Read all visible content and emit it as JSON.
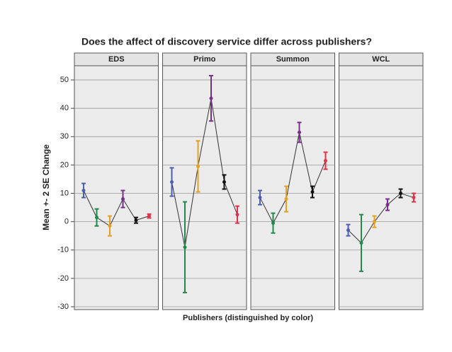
{
  "chart_data": {
    "type": "errorbar",
    "title": "Does the affect of discovery service differ across publishers?",
    "ylabel": "Mean +- 2 SE Change",
    "xlabel": "Publishers (distinguished by color)",
    "ylim": [
      -31,
      55
    ],
    "yticks": [
      -30,
      -20,
      -10,
      0,
      10,
      20,
      30,
      40,
      50
    ],
    "grid": true,
    "colors": [
      "#4a5fb0",
      "#1f8a4c",
      "#e6a020",
      "#7b2d8b",
      "#111111",
      "#e0334a"
    ],
    "panels": [
      {
        "title": "EDS",
        "values": [
          11,
          1.5,
          -1.5,
          8,
          0.5,
          2
        ],
        "errors": [
          2.5,
          3,
          3.5,
          3,
          1,
          0.7
        ]
      },
      {
        "title": "Primo",
        "values": [
          14,
          -9,
          19.5,
          43.5,
          14,
          2.5
        ],
        "errors": [
          5,
          16,
          9,
          8,
          2.5,
          3
        ]
      },
      {
        "title": "Summon",
        "values": [
          8.5,
          -0.5,
          8,
          31.5,
          10.5,
          21.5
        ],
        "errors": [
          2.5,
          3.5,
          4.5,
          3.5,
          2,
          3
        ]
      },
      {
        "title": "WCL",
        "values": [
          -3,
          -7.5,
          0,
          6,
          10,
          8.5
        ],
        "errors": [
          2,
          10,
          2,
          2,
          1.5,
          1.5
        ]
      }
    ]
  }
}
